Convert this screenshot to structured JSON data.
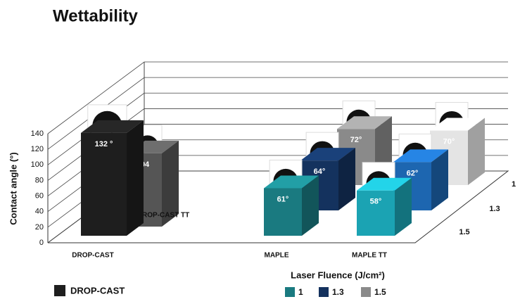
{
  "chart_data": {
    "type": "bar3d",
    "title": "Wettability",
    "y_label": "Contact angle (°)",
    "legend_title": "Laser Fluence (J/cm²)",
    "categories": [
      "DROP-CAST",
      "MAPLE",
      "MAPLE TT"
    ],
    "depth_labels": [
      "1",
      "1.3",
      "1.5"
    ],
    "ylim": [
      0,
      140
    ],
    "yticks": [
      0,
      20,
      40,
      60,
      80,
      100,
      120,
      140
    ],
    "grid": true,
    "series": [
      {
        "name": "DROP-CAST",
        "color": "#1e1e1e",
        "values": [
          132,
          null,
          null
        ],
        "value_labels": [
          "132 °",
          null,
          null
        ]
      },
      {
        "name": "1",
        "color": "#1a7a80",
        "colors": [
          null,
          "#1a7a80",
          "#1ba3b3"
        ],
        "values": [
          null,
          61,
          58
        ],
        "value_labels": [
          null,
          "61°",
          "58°"
        ]
      },
      {
        "name": "1.3",
        "color": "#14325e",
        "colors": [
          null,
          "#14325e",
          "#1d66b0"
        ],
        "values": [
          null,
          64,
          62
        ],
        "value_labels": [
          null,
          "64°",
          "62°"
        ]
      },
      {
        "name": "1.5",
        "color": "#8a8a8a",
        "colors": [
          null,
          "#8a8a8a",
          "#e4e4e4"
        ],
        "values": [
          null,
          72,
          70
        ],
        "value_labels": [
          null,
          "72°",
          "70°"
        ]
      }
    ],
    "extra_bar": {
      "label": "DROP-CAST TT",
      "value": 94,
      "color": "#555555"
    }
  }
}
